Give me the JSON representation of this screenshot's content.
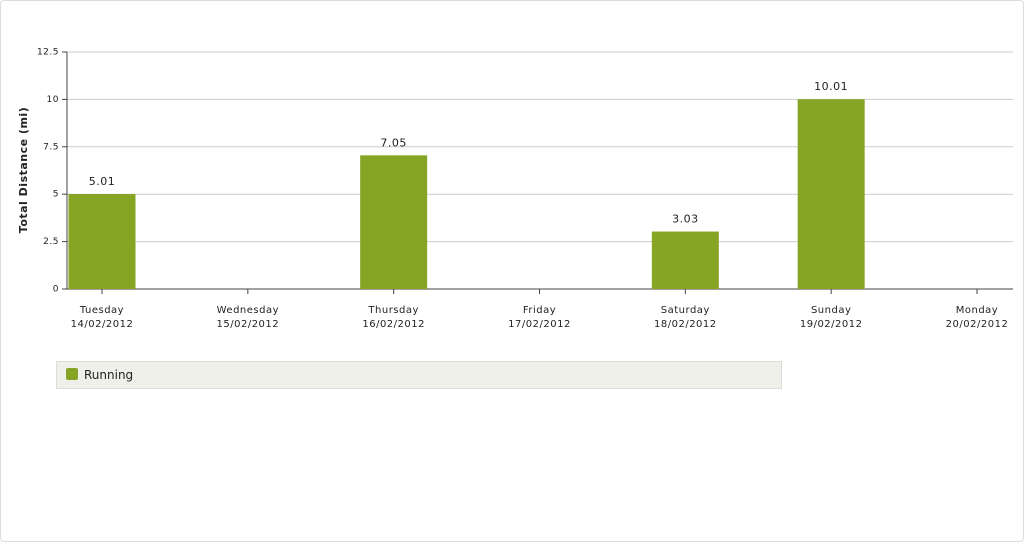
{
  "chart_data": {
    "type": "bar",
    "y_label": "Total Distance (mi)",
    "categories": [
      [
        "Tuesday",
        "14/02/2012"
      ],
      [
        "Wednesday",
        "15/02/2012"
      ],
      [
        "Thursday",
        "16/02/2012"
      ],
      [
        "Friday",
        "17/02/2012"
      ],
      [
        "Saturday",
        "18/02/2012"
      ],
      [
        "Sunday",
        "19/02/2012"
      ],
      [
        "Monday",
        "20/02/2012"
      ]
    ],
    "series": [
      {
        "name": "Running",
        "color": "#86a524",
        "values": [
          5.01,
          null,
          7.05,
          null,
          3.03,
          10.01,
          null
        ]
      }
    ],
    "ylim": [
      0,
      12.5
    ],
    "yticks": [
      0,
      2.5,
      5,
      7.5,
      10,
      12.5
    ],
    "grid": true,
    "legend": "bottom-left"
  }
}
